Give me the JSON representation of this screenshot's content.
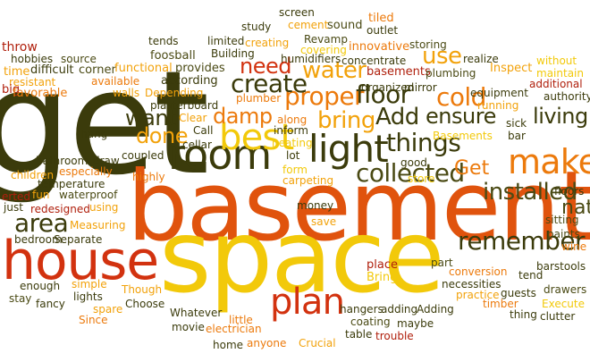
{
  "palette": {
    "dark_olive": "#3b3b0b",
    "dark_green": "#4a4a14",
    "brown": "#8a2b0a",
    "dark_red": "#b0200d",
    "red": "#d2320f",
    "orange_red": "#e0530d",
    "orange": "#ec7a0c",
    "amber": "#f2a20b",
    "yellow": "#f2c90a"
  },
  "words": [
    {
      "text": "get",
      "color": "#3b3b0b"
    },
    {
      "text": "basement",
      "color": "#e0530d"
    },
    {
      "text": "space",
      "color": "#f2c90a"
    },
    {
      "text": "house",
      "color": "#d2320f"
    },
    {
      "text": "room",
      "color": "#3b3b0b"
    },
    {
      "text": "light",
      "color": "#3b3b0b"
    },
    {
      "text": "plan",
      "color": "#d2320f"
    },
    {
      "text": "best",
      "color": "#f2c90a"
    },
    {
      "text": "make",
      "color": "#ec7a0c"
    },
    {
      "text": "remember",
      "color": "#3b3b0b"
    },
    {
      "text": "collected",
      "color": "#4a4a14"
    },
    {
      "text": "things",
      "color": "#3b3b0b"
    },
    {
      "text": "installed",
      "color": "#4a4a14"
    },
    {
      "text": "living",
      "color": "#3b3b0b"
    },
    {
      "text": "proper",
      "color": "#ec7a0c"
    },
    {
      "text": "floor",
      "color": "#3b3b0b"
    },
    {
      "text": "create",
      "color": "#3b3b0b"
    },
    {
      "text": "water",
      "color": "#f2a20b"
    },
    {
      "text": "need",
      "color": "#d2320f"
    },
    {
      "text": "cold",
      "color": "#ec7a0c"
    },
    {
      "text": "damp",
      "color": "#ec7a0c"
    },
    {
      "text": "want",
      "color": "#3b3b0b"
    },
    {
      "text": "done",
      "color": "#f2a20b"
    },
    {
      "text": "bring",
      "color": "#f2a20b"
    },
    {
      "text": "Add",
      "color": "#3b3b0b"
    },
    {
      "text": "ensure",
      "color": "#3b3b0b"
    },
    {
      "text": "use",
      "color": "#f2a20b"
    },
    {
      "text": "Get",
      "color": "#ec7a0c"
    },
    {
      "text": "area",
      "color": "#3b3b0b"
    },
    {
      "text": "natu",
      "color": "#4a4a14"
    },
    {
      "text": "throw",
      "color": "#b0200d"
    },
    {
      "text": "hobbies",
      "color": "#3b3b0b"
    },
    {
      "text": "source",
      "color": "#4a4a14"
    },
    {
      "text": "time",
      "color": "#f2a20b"
    },
    {
      "text": "difficult",
      "color": "#3b3b0b"
    },
    {
      "text": "corner",
      "color": "#4a4a14"
    },
    {
      "text": "resistant",
      "color": "#f2a20b"
    },
    {
      "text": "big",
      "color": "#b0200d"
    },
    {
      "text": "favorable",
      "color": "#ec7a0c"
    },
    {
      "text": "tends",
      "color": "#3b3b0b"
    },
    {
      "text": "foosball",
      "color": "#4a4a14"
    },
    {
      "text": "functional",
      "color": "#f2a20b"
    },
    {
      "text": "available",
      "color": "#ec7a0c"
    },
    {
      "text": "provides",
      "color": "#4a4a14"
    },
    {
      "text": "according",
      "color": "#3b3b0b"
    },
    {
      "text": "walls",
      "color": "#f2a20b"
    },
    {
      "text": "Depending",
      "color": "#f2a20b"
    },
    {
      "text": "limited",
      "color": "#3b3b0b"
    },
    {
      "text": "Building",
      "color": "#3b3b0b"
    },
    {
      "text": "study",
      "color": "#3b3b0b"
    },
    {
      "text": "screen",
      "color": "#3b3b0b"
    },
    {
      "text": "creating",
      "color": "#f2a20b"
    },
    {
      "text": "cement",
      "color": "#f2a20b"
    },
    {
      "text": "sound",
      "color": "#4a4a14"
    },
    {
      "text": "Revamp",
      "color": "#4a4a14"
    },
    {
      "text": "tiled",
      "color": "#ec7a0c"
    },
    {
      "text": "outlet",
      "color": "#3b3b0b"
    },
    {
      "text": "covering",
      "color": "#f2c90a"
    },
    {
      "text": "innovative",
      "color": "#ec7a0c"
    },
    {
      "text": "storing",
      "color": "#4a4a14"
    },
    {
      "text": "humidifiers",
      "color": "#3b3b0b"
    },
    {
      "text": "concentrate",
      "color": "#3b3b0b"
    },
    {
      "text": "realize",
      "color": "#3b3b0b"
    },
    {
      "text": "without",
      "color": "#f2c90a"
    },
    {
      "text": "maintain",
      "color": "#f2c90a"
    },
    {
      "text": "Inspect",
      "color": "#f2a20b"
    },
    {
      "text": "additional",
      "color": "#b0200d"
    },
    {
      "text": "basements",
      "color": "#b0200d"
    },
    {
      "text": "plumbing",
      "color": "#4a4a14"
    },
    {
      "text": "authority",
      "color": "#3b3b0b"
    },
    {
      "text": "organized",
      "color": "#3b3b0b"
    },
    {
      "text": "mirror",
      "color": "#3b3b0b"
    },
    {
      "text": "equipment",
      "color": "#3b3b0b"
    },
    {
      "text": "running",
      "color": "#f2a20b"
    },
    {
      "text": "plasterboard",
      "color": "#3b3b0b"
    },
    {
      "text": "plumber",
      "color": "#ec7a0c"
    },
    {
      "text": "Clear",
      "color": "#f2a20b"
    },
    {
      "text": "Call",
      "color": "#3b3b0b"
    },
    {
      "text": "cellar",
      "color": "#3b3b0b"
    },
    {
      "text": "along",
      "color": "#ec7a0c"
    },
    {
      "text": "inform",
      "color": "#3b3b0b"
    },
    {
      "text": "heating",
      "color": "#f2c90a"
    },
    {
      "text": "sick",
      "color": "#3b3b0b"
    },
    {
      "text": "bar",
      "color": "#3b3b0b"
    },
    {
      "text": "Basements",
      "color": "#f2c90a"
    },
    {
      "text": "hang",
      "color": "#3b3b0b"
    },
    {
      "text": "bathroom",
      "color": "#3b3b0b"
    },
    {
      "text": "draw",
      "color": "#3b3b0b"
    },
    {
      "text": "coupled",
      "color": "#3b3b0b"
    },
    {
      "text": "children",
      "color": "#f2a20b"
    },
    {
      "text": "especially",
      "color": "#ec7a0c"
    },
    {
      "text": "lot",
      "color": "#3b3b0b"
    },
    {
      "text": "form",
      "color": "#f2c90a"
    },
    {
      "text": "carpeting",
      "color": "#f2a20b"
    },
    {
      "text": "good",
      "color": "#3b3b0b"
    },
    {
      "text": "store",
      "color": "#f2c90a"
    },
    {
      "text": "temperature",
      "color": "#3b3b0b"
    },
    {
      "text": "fun",
      "color": "#f2a20b"
    },
    {
      "text": "waterproof",
      "color": "#4a4a14"
    },
    {
      "text": "highly",
      "color": "#ec7a0c"
    },
    {
      "text": "floors",
      "color": "#3b3b0b"
    },
    {
      "text": "erted",
      "color": "#b0200d"
    },
    {
      "text": "just",
      "color": "#3b3b0b"
    },
    {
      "text": "redesigned",
      "color": "#b0200d"
    },
    {
      "text": "using",
      "color": "#f2a20b"
    },
    {
      "text": "Measuring",
      "color": "#f2a20b"
    },
    {
      "text": "money",
      "color": "#3b3b0b"
    },
    {
      "text": "save",
      "color": "#f2a20b"
    },
    {
      "text": "sitting",
      "color": "#4a4a14"
    },
    {
      "text": "paints",
      "color": "#4a4a14"
    },
    {
      "text": "wine",
      "color": "#ec7a0c"
    },
    {
      "text": "bedroom",
      "color": "#3b3b0b"
    },
    {
      "text": "Separate",
      "color": "#3b3b0b"
    },
    {
      "text": "part",
      "color": "#4a4a14"
    },
    {
      "text": "place",
      "color": "#b0200d"
    },
    {
      "text": "Bring",
      "color": "#f2c90a"
    },
    {
      "text": "conversion",
      "color": "#ec7a0c"
    },
    {
      "text": "necessities",
      "color": "#3b3b0b"
    },
    {
      "text": "tend",
      "color": "#3b3b0b"
    },
    {
      "text": "barstools",
      "color": "#3b3b0b"
    },
    {
      "text": "drawers",
      "color": "#4a4a14"
    },
    {
      "text": "enough",
      "color": "#3b3b0b"
    },
    {
      "text": "simple",
      "color": "#f2a20b"
    },
    {
      "text": "stay",
      "color": "#4a4a14"
    },
    {
      "text": "lights",
      "color": "#3b3b0b"
    },
    {
      "text": "fancy",
      "color": "#3b3b0b"
    },
    {
      "text": "Though",
      "color": "#f2a20b"
    },
    {
      "text": "spare",
      "color": "#f2a20b"
    },
    {
      "text": "Choose",
      "color": "#3b3b0b"
    },
    {
      "text": "Since",
      "color": "#ec7a0c"
    },
    {
      "text": "practice",
      "color": "#f2a20b"
    },
    {
      "text": "guests",
      "color": "#3b3b0b"
    },
    {
      "text": "timber",
      "color": "#ec7a0c"
    },
    {
      "text": "Execute",
      "color": "#f2c90a"
    },
    {
      "text": "thing",
      "color": "#3b3b0b"
    },
    {
      "text": "clutter",
      "color": "#3b3b0b"
    },
    {
      "text": "hangers",
      "color": "#3b3b0b"
    },
    {
      "text": "adding",
      "color": "#3b3b0b"
    },
    {
      "text": "Adding",
      "color": "#3b3b0b"
    },
    {
      "text": "coating",
      "color": "#4a4a14"
    },
    {
      "text": "maybe",
      "color": "#3b3b0b"
    },
    {
      "text": "Whatever",
      "color": "#3b3b0b"
    },
    {
      "text": "little",
      "color": "#ec7a0c"
    },
    {
      "text": "movie",
      "color": "#3b3b0b"
    },
    {
      "text": "electrician",
      "color": "#ec7a0c"
    },
    {
      "text": "table",
      "color": "#3b3b0b"
    },
    {
      "text": "trouble",
      "color": "#b0200d"
    },
    {
      "text": "home",
      "color": "#3b3b0b"
    },
    {
      "text": "anyone",
      "color": "#ec7a0c"
    },
    {
      "text": "Crucial",
      "color": "#f2a20b"
    }
  ]
}
